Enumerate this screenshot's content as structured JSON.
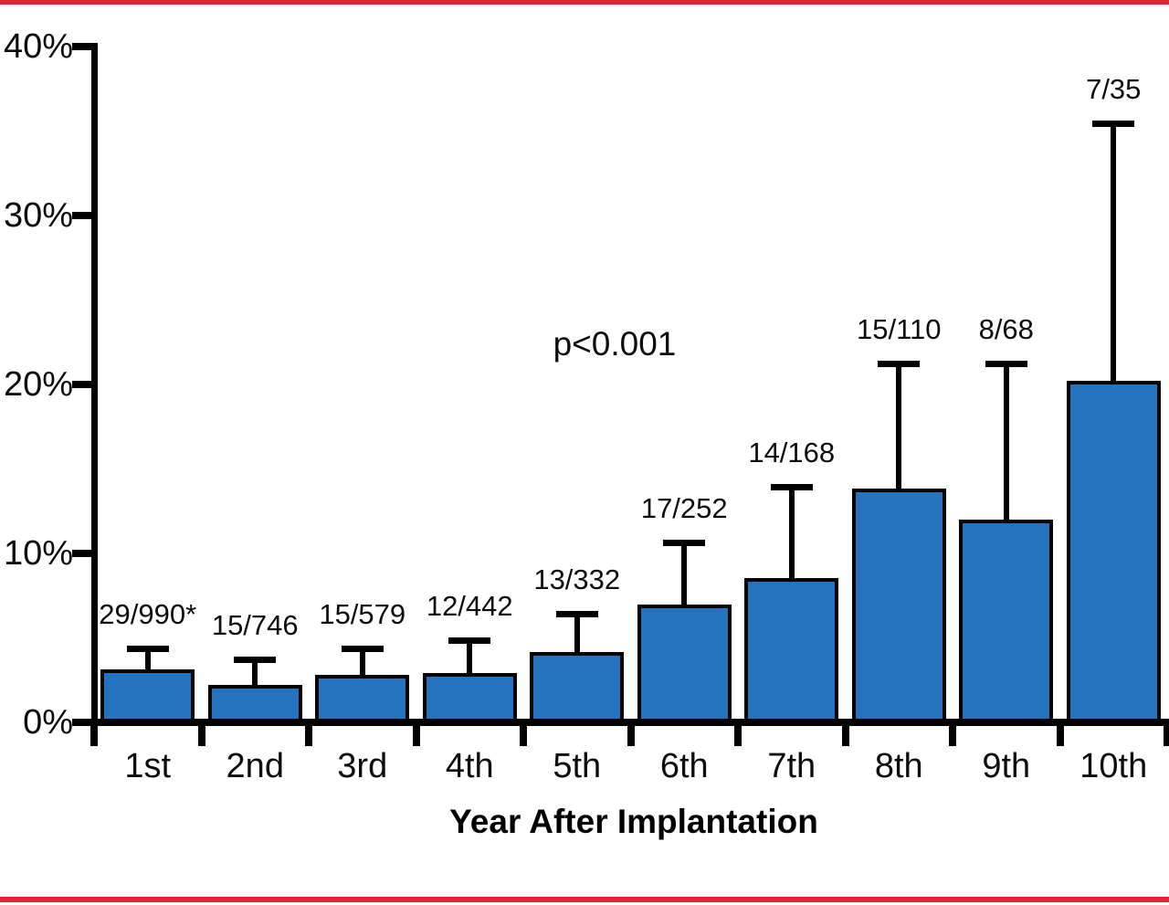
{
  "chart_data": {
    "type": "bar",
    "title": "",
    "xlabel": "Year After Implantation",
    "ylabel": "",
    "categories": [
      "1st",
      "2nd",
      "3rd",
      "4th",
      "5th",
      "6th",
      "7th",
      "8th",
      "9th",
      "10th"
    ],
    "values": [
      2.93,
      2.01,
      2.59,
      2.71,
      3.92,
      6.75,
      8.33,
      13.64,
      11.76,
      20.0
    ],
    "error_upper_top": [
      4.3,
      3.7,
      4.3,
      4.8,
      6.4,
      10.6,
      13.9,
      21.2,
      21.2,
      35.4
    ],
    "bar_labels": [
      "29/990*",
      "15/746",
      "15/579",
      "12/442",
      "13/332",
      "17/252",
      "14/168",
      "15/110",
      "8/68",
      "7/35"
    ],
    "annotation": "p<0.001",
    "y_ticks": [
      "0%",
      "10%",
      "20%",
      "30%",
      "40%"
    ],
    "ylim": [
      0,
      40
    ],
    "grid": false,
    "legend": "none",
    "bar_color": "#2573BD",
    "bar_border_color": "#000000",
    "accent_rule_color": "#DC2630"
  }
}
